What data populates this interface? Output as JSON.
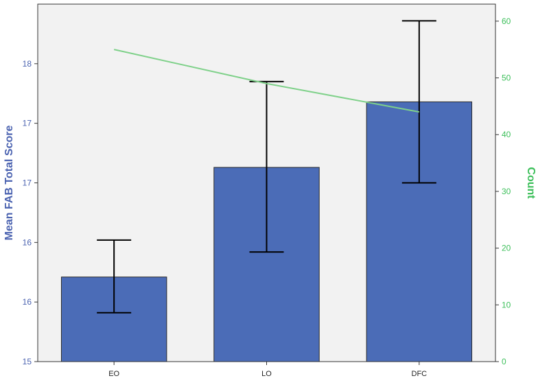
{
  "chart_data": {
    "type": "bar",
    "categories": [
      "EO",
      "LO",
      "DFC"
    ],
    "series": [
      {
        "values": [
          15.71,
          16.63,
          17.18
        ],
        "error_low": [
          15.41,
          15.92,
          16.5
        ],
        "error_high": [
          16.02,
          17.35,
          17.86
        ],
        "axis": "left"
      },
      {
        "values": [
          55,
          49,
          44
        ],
        "axis": "right"
      }
    ],
    "ylabel": "Mean FAB Total Score",
    "y2label": "Count",
    "ylim": [
      15,
      18
    ],
    "y2lim": [
      0,
      63
    ],
    "yticks": [
      {
        "value": 15,
        "label": "15"
      },
      {
        "value": 15.5,
        "label": "16"
      },
      {
        "value": 16,
        "label": "16"
      },
      {
        "value": 16.5,
        "label": "17"
      },
      {
        "value": 17,
        "label": "17"
      },
      {
        "value": 17.5,
        "label": "18"
      }
    ],
    "y2ticks": [
      0,
      10,
      20,
      30,
      40,
      50,
      60
    ],
    "grid": false,
    "colors": {
      "bar": "#4b6cb7",
      "bar_edge": "#2a2a2a",
      "line": "#7fd18a",
      "left_axis_text": "#4a62b0",
      "right_axis_text": "#3cbf5a",
      "plot_bg": "#f2f2f2"
    }
  }
}
